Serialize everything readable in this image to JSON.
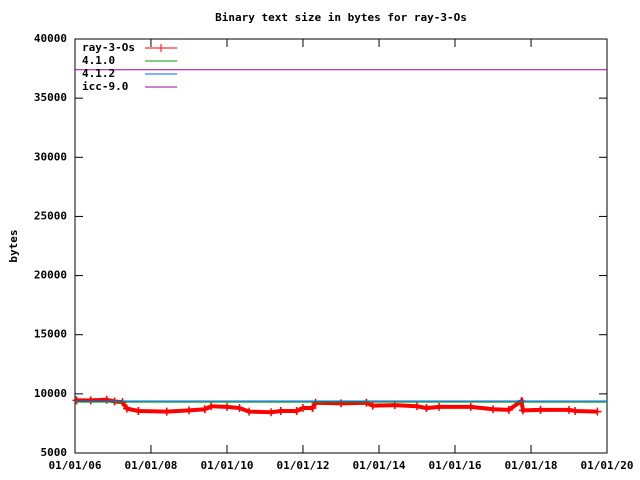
{
  "chart_data": {
    "type": "line",
    "title": "Binary text size in bytes for ray-3-Os",
    "y_label": "bytes",
    "xlim": [
      "2006-01-01",
      "2020-01-01"
    ],
    "xticks": [
      {
        "value": "2006-01-01",
        "label": "01/01/06"
      },
      {
        "value": "2008-01-01",
        "label": "01/01/08"
      },
      {
        "value": "2010-01-01",
        "label": "01/01/10"
      },
      {
        "value": "2012-01-01",
        "label": "01/01/12"
      },
      {
        "value": "2014-01-01",
        "label": "01/01/14"
      },
      {
        "value": "2016-01-01",
        "label": "01/01/16"
      },
      {
        "value": "2018-01-01",
        "label": "01/01/18"
      },
      {
        "value": "2020-01-01",
        "label": "01/01/20"
      }
    ],
    "ylim": [
      5000,
      40000
    ],
    "yticks": [
      5000,
      10000,
      15000,
      20000,
      25000,
      30000,
      35000,
      40000
    ],
    "legend": "top-left",
    "series": [
      {
        "name": "ray-3-Os",
        "color": "#ff0000",
        "markers": true,
        "x": [
          "2006-01-15",
          "2006-06-01",
          "2006-11-01",
          "2007-01-15",
          "2007-04-01",
          "2007-05-15",
          "2007-09-01",
          "2008-06-01",
          "2009-01-01",
          "2009-06-01",
          "2009-08-01",
          "2010-01-01",
          "2010-05-01",
          "2010-08-01",
          "2011-03-01",
          "2011-06-01",
          "2011-11-01",
          "2012-01-01",
          "2012-04-01",
          "2012-05-01",
          "2013-01-01",
          "2013-09-01",
          "2013-11-01",
          "2014-06-01",
          "2015-01-01",
          "2015-04-01",
          "2015-08-01",
          "2016-06-01",
          "2017-01-01",
          "2017-06-01",
          "2017-10-01",
          "2017-10-15",
          "2018-04-01",
          "2019-01-01",
          "2019-03-01",
          "2019-10-01"
        ],
        "values": [
          9450,
          9450,
          9500,
          9350,
          9300,
          8750,
          8550,
          8500,
          8600,
          8700,
          8950,
          8900,
          8800,
          8500,
          8450,
          8550,
          8550,
          8800,
          8800,
          9250,
          9200,
          9250,
          9000,
          9050,
          8950,
          8800,
          8900,
          8900,
          8700,
          8650,
          9400,
          8600,
          8650,
          8650,
          8550,
          8500
        ]
      },
      {
        "name": "4.1.0",
        "color": "#00a000",
        "x": [
          "2006-01-01",
          "2020-01-01"
        ],
        "values": [
          9300,
          9300
        ]
      },
      {
        "name": "4.1.2",
        "color": "#0060ff",
        "x": [
          "2006-01-01",
          "2020-01-01"
        ],
        "values": [
          9400,
          9400
        ]
      },
      {
        "name": "icc-9.0",
        "color": "#a000a0",
        "x": [
          "2006-01-01",
          "2020-01-01"
        ],
        "values": [
          37400,
          37400
        ]
      }
    ]
  }
}
